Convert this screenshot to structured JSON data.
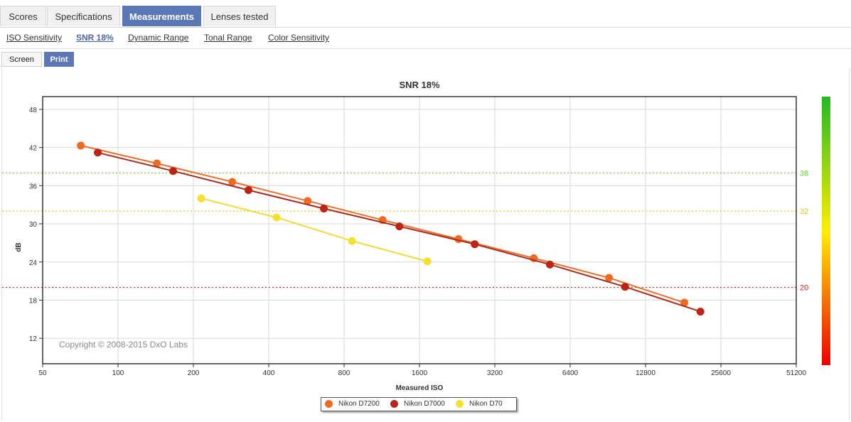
{
  "tabs": [
    {
      "label": "Scores",
      "active": false
    },
    {
      "label": "Specifications",
      "active": false
    },
    {
      "label": "Measurements",
      "active": true
    },
    {
      "label": "Lenses tested",
      "active": false
    }
  ],
  "subtabs": [
    {
      "label": "ISO Sensitivity",
      "active": false
    },
    {
      "label": "SNR 18%",
      "active": true
    },
    {
      "label": "Dynamic Range",
      "active": false
    },
    {
      "label": "Tonal Range",
      "active": false
    },
    {
      "label": "Color Sensitivity",
      "active": false
    }
  ],
  "modes": [
    {
      "label": "Screen",
      "active": false
    },
    {
      "label": "Print",
      "active": true
    }
  ],
  "chart_data": {
    "type": "line",
    "title": "SNR 18%",
    "xlabel": "Measured ISO",
    "ylabel": "dB",
    "x_scale": "log2",
    "xlim": [
      50,
      51200
    ],
    "ylim": [
      8,
      50
    ],
    "x_ticks": [
      50,
      100,
      200,
      400,
      800,
      1600,
      3200,
      6400,
      12800,
      25600,
      51200
    ],
    "x_tick_labels": [
      "50",
      "100",
      "200",
      "400",
      "800",
      "1600",
      "3200",
      "6400",
      "12800",
      "25600",
      "51200"
    ],
    "y_ticks": [
      12,
      18,
      24,
      30,
      36,
      42,
      48
    ],
    "y_tick_labels": [
      "12",
      "18",
      "24",
      "30",
      "36",
      "42",
      "48"
    ],
    "grid": true,
    "thresholds": [
      {
        "value": 38,
        "label": "38",
        "color": "#66cc33"
      },
      {
        "value": 32,
        "label": "32",
        "color": "#e8c21a"
      },
      {
        "value": 20,
        "label": "20",
        "color": "#cc2222"
      }
    ],
    "color_scale": {
      "top": "#22bb22",
      "middle": "#ffee00",
      "bottom": "#ee0000"
    },
    "copyright": "Copyright © 2008-2015 DxO Labs",
    "legend_position": "bottom-center",
    "series": [
      {
        "name": "Nikon D7200",
        "color": "#f06a22",
        "line_color": "#e8702e",
        "x": [
          71,
          143,
          286,
          572,
          1140,
          2290,
          4580,
          9150,
          18300
        ],
        "y": [
          42.3,
          39.5,
          36.6,
          33.6,
          30.6,
          27.6,
          24.6,
          21.5,
          17.6
        ]
      },
      {
        "name": "Nikon D7000",
        "color": "#bb2416",
        "line_color": "#a82c1e",
        "x": [
          83,
          166,
          332,
          664,
          1330,
          2660,
          5310,
          10600,
          21200
        ],
        "y": [
          41.2,
          38.3,
          35.3,
          32.4,
          29.6,
          26.8,
          23.6,
          20.1,
          16.2
        ]
      },
      {
        "name": "Nikon D70",
        "color": "#f5e030",
        "line_color": "#efdb3a",
        "x": [
          215,
          430,
          860,
          1720
        ],
        "y": [
          34.0,
          31.0,
          27.3,
          24.1
        ]
      }
    ]
  }
}
